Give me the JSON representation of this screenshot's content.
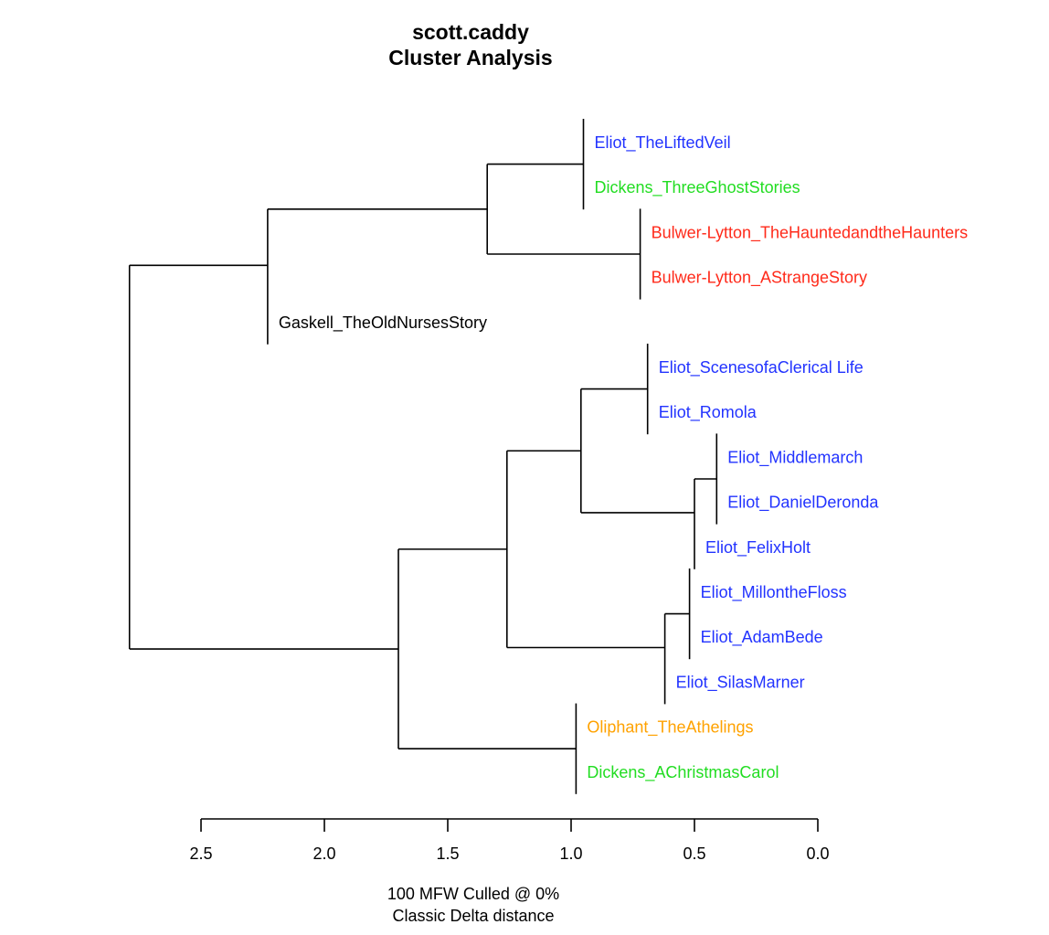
{
  "chart_data": {
    "type": "dendrogram",
    "title": "scott.caddy",
    "subtitle": "Cluster Analysis",
    "footer": [
      "100 MFW  Culled @ 0%",
      "Classic Delta distance"
    ],
    "x_axis": {
      "ticks": [
        2.5,
        2.0,
        1.5,
        1.0,
        0.5,
        0.0
      ],
      "tick_labels": [
        "2.5",
        "2.0",
        "1.5",
        "1.0",
        "0.5",
        "0.0"
      ],
      "range": [
        2.5,
        0.0
      ]
    },
    "colors": {
      "Eliot": "#2233ff",
      "Dickens": "#22dd22",
      "Bulwer-Lytton": "#ff2a1a",
      "Gaskell": "#000000",
      "Oliphant": "#ffa200",
      "line": "#000000"
    },
    "leaves": [
      {
        "label": "Eliot_TheLiftedVeil",
        "author": "Eliot"
      },
      {
        "label": "Dickens_ThreeGhostStories",
        "author": "Dickens"
      },
      {
        "label": "Bulwer-Lytton_TheHauntedandtheHaunters",
        "author": "Bulwer-Lytton"
      },
      {
        "label": "Bulwer-Lytton_AStrangeStory",
        "author": "Bulwer-Lytton"
      },
      {
        "label": "Gaskell_TheOldNursesStory",
        "author": "Gaskell"
      },
      {
        "label": "Eliot_ScenesofaClerical Life",
        "author": "Eliot"
      },
      {
        "label": "Eliot_Romola",
        "author": "Eliot"
      },
      {
        "label": "Eliot_Middlemarch",
        "author": "Eliot"
      },
      {
        "label": "Eliot_DanielDeronda",
        "author": "Eliot"
      },
      {
        "label": "Eliot_FelixHolt",
        "author": "Eliot"
      },
      {
        "label": "Eliot_MillontheFloss",
        "author": "Eliot"
      },
      {
        "label": "Eliot_AdamBede",
        "author": "Eliot"
      },
      {
        "label": "Eliot_SilasMarner",
        "author": "Eliot"
      },
      {
        "label": "Oliphant_TheAthelings",
        "author": "Oliphant"
      },
      {
        "label": "Dickens_AChristmasCarol",
        "author": "Dickens"
      }
    ],
    "merges": [
      {
        "height": 0.95,
        "children": [
          "L0",
          "L1"
        ]
      },
      {
        "height": 0.72,
        "children": [
          "L2",
          "L3"
        ]
      },
      {
        "height": 1.34,
        "children": [
          "N0",
          "N1"
        ]
      },
      {
        "height": 2.23,
        "children": [
          "N2",
          "L4"
        ]
      },
      {
        "height": 0.69,
        "children": [
          "L5",
          "L6"
        ]
      },
      {
        "height": 0.41,
        "children": [
          "L7",
          "L8"
        ]
      },
      {
        "height": 0.5,
        "children": [
          "N5",
          "L9"
        ]
      },
      {
        "height": 0.96,
        "children": [
          "N4",
          "N6"
        ]
      },
      {
        "height": 0.52,
        "children": [
          "L10",
          "L11"
        ]
      },
      {
        "height": 0.62,
        "children": [
          "N8",
          "L12"
        ]
      },
      {
        "height": 1.26,
        "children": [
          "N7",
          "N9"
        ]
      },
      {
        "height": 0.98,
        "children": [
          "L13",
          "L14"
        ]
      },
      {
        "height": 1.7,
        "children": [
          "N10",
          "N11"
        ]
      },
      {
        "height": 2.79,
        "children": [
          "N3",
          "N12"
        ]
      }
    ]
  }
}
